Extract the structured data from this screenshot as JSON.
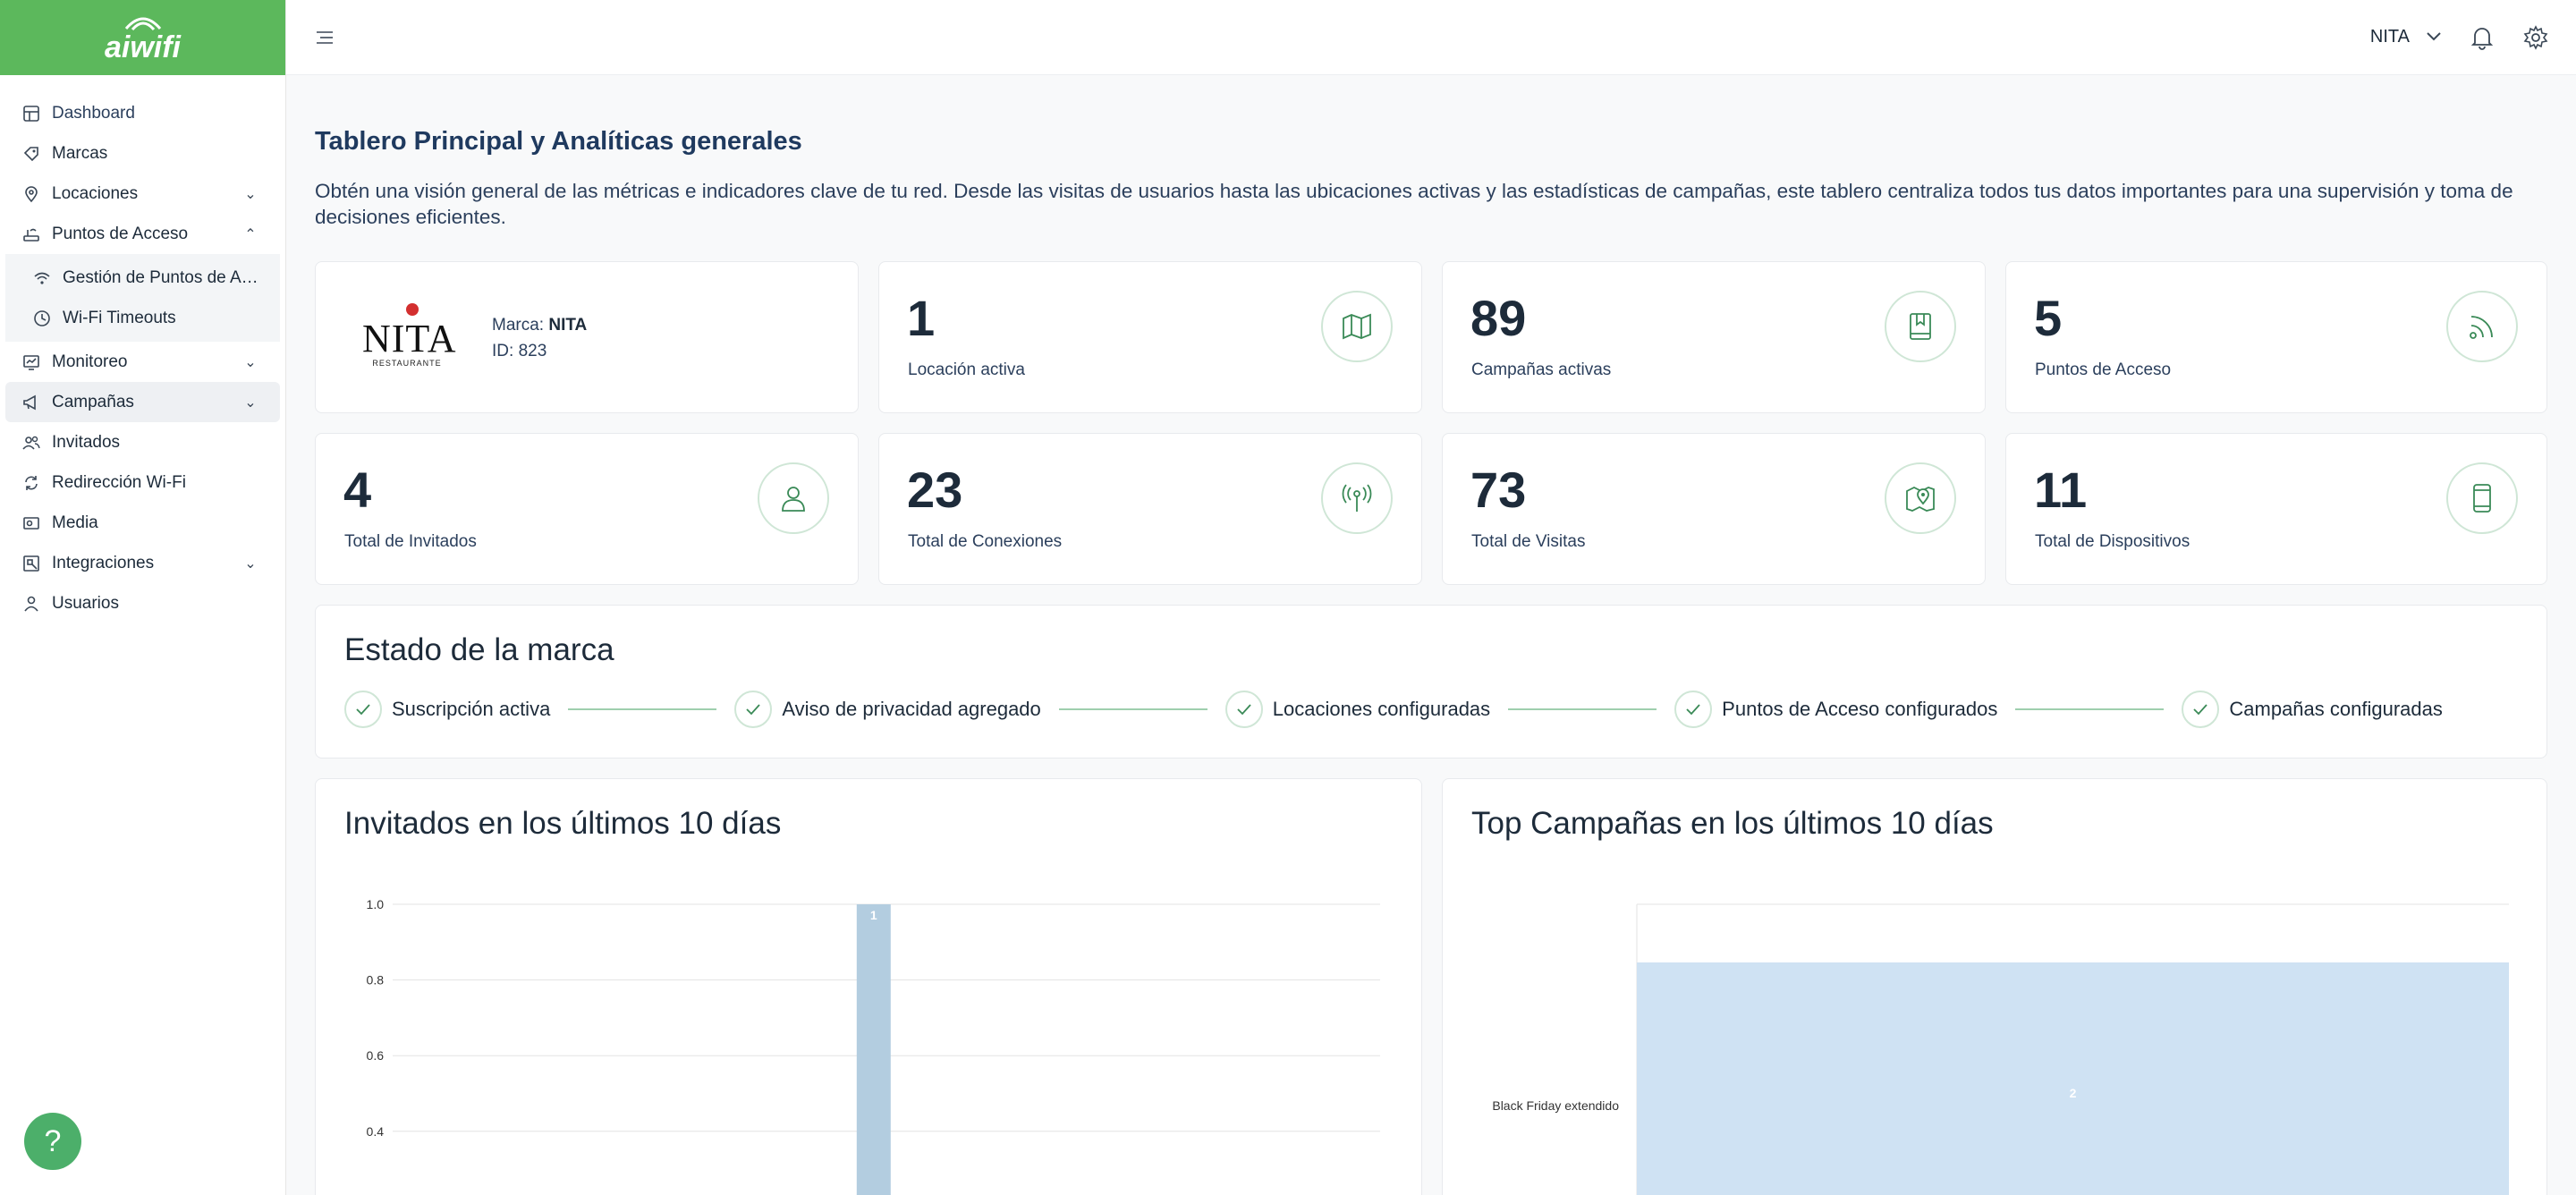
{
  "app": {
    "logo_text": "aiwifi"
  },
  "sidebar": {
    "items": [
      {
        "label": "Dashboard"
      },
      {
        "label": "Marcas"
      },
      {
        "label": "Locaciones"
      },
      {
        "label": "Puntos de Acceso"
      },
      {
        "label": "Gestión de Puntos de Acceso"
      },
      {
        "label": "Wi-Fi Timeouts"
      },
      {
        "label": "Monitoreo"
      },
      {
        "label": "Campañas"
      },
      {
        "label": "Invitados"
      },
      {
        "label": "Redirección Wi-Fi"
      },
      {
        "label": "Media"
      },
      {
        "label": "Integraciones"
      },
      {
        "label": "Usuarios"
      }
    ]
  },
  "topbar": {
    "user": "NITA"
  },
  "page": {
    "title": "Tablero Principal y Analíticas generales",
    "description": "Obtén una visión general de las métricas e indicadores clave de tu red. Desde las visitas de usuarios hasta las ubicaciones activas y las estadísticas de campañas, este tablero centraliza todos tus datos importantes para una supervisión y toma de decisiones eficientes."
  },
  "brand": {
    "logo_word": "NITA",
    "logo_sub": "RESTAURANTE",
    "marca_label": "Marca:",
    "marca_value": "NITA",
    "id_label": "ID:",
    "id_value": "823"
  },
  "stats": [
    {
      "value": "1",
      "label": "Locación activa",
      "icon": "map-icon"
    },
    {
      "value": "89",
      "label": "Campañas activas",
      "icon": "bookmark-book-icon"
    },
    {
      "value": "5",
      "label": "Puntos de Acceso",
      "icon": "rss-signal-icon"
    },
    {
      "value": "4",
      "label": "Total de Invitados",
      "icon": "user-icon"
    },
    {
      "value": "23",
      "label": "Total de Conexiones",
      "icon": "antenna-icon"
    },
    {
      "value": "73",
      "label": "Total de Visitas",
      "icon": "map-pin-icon"
    },
    {
      "value": "11",
      "label": "Total de Dispositivos",
      "icon": "phone-icon"
    }
  ],
  "brand_status": {
    "title": "Estado de la marca",
    "steps": [
      {
        "label": "Suscripción activa"
      },
      {
        "label": "Aviso de privacidad agregado"
      },
      {
        "label": "Locaciones configuradas"
      },
      {
        "label": "Puntos de Acceso configurados"
      },
      {
        "label": "Campañas configuradas"
      }
    ]
  },
  "colors": {
    "accent": "#5cb85c",
    "bar_guests": "#b3cde0",
    "bar_campaigns": "#cfe2f3"
  },
  "chart_data": [
    {
      "type": "bar",
      "title": "Invitados en los últimos 10 días",
      "y_ticks": [
        "1.0",
        "0.8",
        "0.6",
        "0.4"
      ],
      "ylim": [
        0,
        1
      ],
      "bar_index": 4,
      "categories_count": 10,
      "values": [
        0,
        0,
        0,
        0,
        1,
        0,
        0,
        0,
        0,
        0
      ],
      "data_labels": [
        "1"
      ],
      "grid": true
    },
    {
      "type": "bar",
      "orientation": "horizontal",
      "title": "Top Campañas en los últimos 10 días",
      "categories": [
        "Black Friday extendido"
      ],
      "values": [
        2
      ],
      "data_labels": [
        "2"
      ]
    }
  ]
}
